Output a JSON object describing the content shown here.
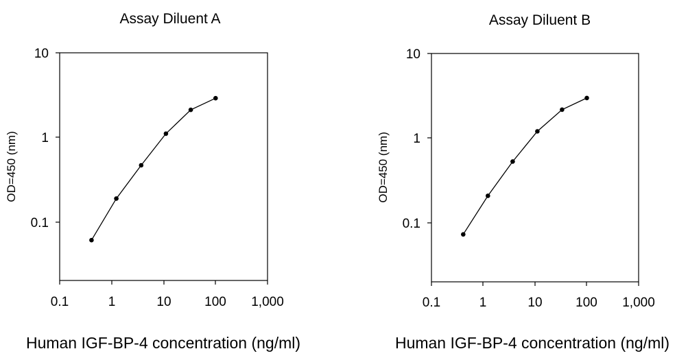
{
  "chart_data": [
    {
      "type": "line",
      "title": "Assay Diluent A",
      "xlabel": "Human IGF-BP-4 concentration (ng/ml)",
      "ylabel": "OD=450 (nm)",
      "x_scale": "log",
      "y_scale": "log",
      "xlim": [
        0.1,
        1000
      ],
      "ylim": [
        0.01,
        10
      ],
      "x_ticks": [
        0.1,
        1,
        10,
        100,
        1000
      ],
      "x_tick_labels": [
        "0.1",
        "1",
        "10",
        "100",
        "1,000"
      ],
      "y_ticks": [
        0.1,
        1,
        10
      ],
      "y_tick_labels": [
        "0.1",
        "1",
        "10"
      ],
      "grid": false,
      "markers": "filled circle",
      "series": [
        {
          "x": [
            0.41,
            1.23,
            3.7,
            11.1,
            33.3,
            100
          ],
          "y": [
            0.034,
            0.12,
            0.33,
            0.86,
            1.77,
            2.52
          ]
        }
      ]
    },
    {
      "type": "line",
      "title": "Assay Diluent B",
      "xlabel": "Human IGF-BP-4 concentration (ng/ml)",
      "ylabel": "OD=450 (nm)",
      "x_scale": "log",
      "y_scale": "log",
      "xlim": [
        0.1,
        1000
      ],
      "ylim": [
        0.01,
        10
      ],
      "x_ticks": [
        0.1,
        1,
        10,
        100,
        1000
      ],
      "x_tick_labels": [
        "0.1",
        "1",
        "10",
        "100",
        "1,000"
      ],
      "y_ticks": [
        0.1,
        1,
        10
      ],
      "y_tick_labels": [
        "0.1",
        "1",
        "10"
      ],
      "grid": false,
      "markers": "filled circle",
      "series": [
        {
          "x": [
            0.41,
            1.23,
            3.7,
            11.1,
            33.3,
            100
          ],
          "y": [
            0.042,
            0.135,
            0.38,
            0.95,
            1.83,
            2.6
          ]
        }
      ]
    }
  ]
}
